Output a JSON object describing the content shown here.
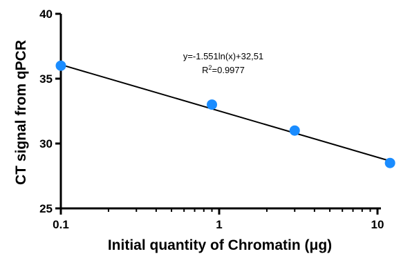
{
  "chart_data": {
    "type": "scatter",
    "title": "",
    "xlabel": "Initial quantity of Chromatin (μg)",
    "ylabel": "CT signal from qPCR",
    "x_scale": "log",
    "xlim": [
      0.1,
      12
    ],
    "ylim": [
      25,
      40
    ],
    "x_ticks": [
      0.1,
      1,
      10
    ],
    "x_tick_labels": [
      "0.1",
      "1",
      "10"
    ],
    "y_ticks": [
      25,
      30,
      35,
      40
    ],
    "y_tick_labels": [
      "25",
      "30",
      "35",
      "40"
    ],
    "grid": false,
    "series": [
      {
        "x": [
          0.1,
          0.9,
          3,
          12
        ],
        "y": [
          36.0,
          33.0,
          31.0,
          28.5
        ],
        "color": "#1a8cff"
      }
    ],
    "fit_line": {
      "x_range": [
        0.1,
        12
      ],
      "slope_ln": -1.551,
      "intercept": 32.51,
      "color": "#000000"
    },
    "annotation": {
      "equation": "y=-1.551ln(x)+32,51",
      "r2_prefix": "R",
      "r2_sup": "2",
      "r2_value": "=0.9977"
    }
  }
}
